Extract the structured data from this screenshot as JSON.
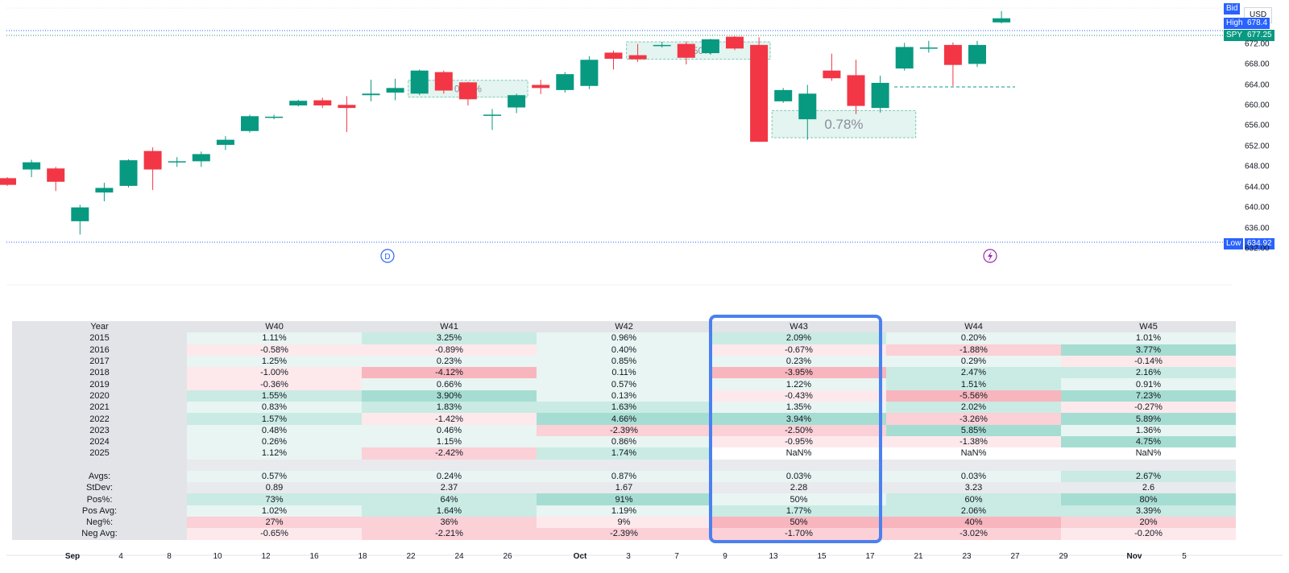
{
  "chart_data": {
    "type": "candlestick",
    "symbol": "SPY",
    "y_ticks": [
      "672.00",
      "668.00",
      "664.00",
      "660.00",
      "656.00",
      "652.00",
      "648.00",
      "644.00",
      "640.00",
      "636.00",
      "632.00"
    ],
    "ylim": [
      630,
      679
    ],
    "x_labels": [
      {
        "t": "Sep",
        "bold": true
      },
      {
        "t": "4"
      },
      {
        "t": "8"
      },
      {
        "t": "10"
      },
      {
        "t": "12"
      },
      {
        "t": "16"
      },
      {
        "t": "18"
      },
      {
        "t": "22"
      },
      {
        "t": "24"
      },
      {
        "t": "26"
      },
      {
        "t": "Oct",
        "bold": true
      },
      {
        "t": "3"
      },
      {
        "t": "7"
      },
      {
        "t": "9"
      },
      {
        "t": "13"
      },
      {
        "t": "15"
      },
      {
        "t": "17"
      },
      {
        "t": "21"
      },
      {
        "t": "23"
      },
      {
        "t": "27"
      },
      {
        "t": "29"
      },
      {
        "t": "Nov",
        "bold": true
      },
      {
        "t": "5"
      }
    ],
    "candles": [
      {
        "o": 645.8,
        "c": 644.5,
        "h": 646.0,
        "l": 644.3
      },
      {
        "o": 647.5,
        "c": 648.9,
        "h": 649.4,
        "l": 646.0
      },
      {
        "o": 647.7,
        "c": 645.1,
        "h": 648.0,
        "l": 643.3
      },
      {
        "o": 637.4,
        "c": 640.1,
        "h": 640.6,
        "l": 634.8
      },
      {
        "o": 643.0,
        "c": 643.9,
        "h": 644.9,
        "l": 641.3
      },
      {
        "o": 644.3,
        "c": 649.3,
        "h": 649.5,
        "l": 644.0
      },
      {
        "o": 651.1,
        "c": 647.5,
        "h": 651.8,
        "l": 643.5
      },
      {
        "o": 648.9,
        "c": 649.1,
        "h": 649.9,
        "l": 648.0
      },
      {
        "o": 649.1,
        "c": 650.5,
        "h": 651.0,
        "l": 648.0
      },
      {
        "o": 652.3,
        "c": 653.3,
        "h": 654.0,
        "l": 651.3
      },
      {
        "o": 655.0,
        "c": 657.9,
        "h": 658.2,
        "l": 654.7
      },
      {
        "o": 657.6,
        "c": 657.8,
        "h": 658.2,
        "l": 657.3
      },
      {
        "o": 660.0,
        "c": 660.9,
        "h": 661.1,
        "l": 659.8
      },
      {
        "o": 661.0,
        "c": 660.0,
        "h": 661.5,
        "l": 659.5
      },
      {
        "o": 660.1,
        "c": 659.5,
        "h": 661.8,
        "l": 654.8
      },
      {
        "o": 662.0,
        "c": 662.3,
        "h": 665.0,
        "l": 660.8
      },
      {
        "o": 662.5,
        "c": 663.4,
        "h": 665.2,
        "l": 661.0
      },
      {
        "o": 662.3,
        "c": 666.8,
        "h": 667.0,
        "l": 662.0
      },
      {
        "o": 666.5,
        "c": 662.9,
        "h": 666.8,
        "l": 662.3
      },
      {
        "o": 664.5,
        "c": 661.2,
        "h": 664.6,
        "l": 660.0
      },
      {
        "o": 658.1,
        "c": 658.2,
        "h": 659.3,
        "l": 655.2
      },
      {
        "o": 659.6,
        "c": 662.0,
        "h": 662.3,
        "l": 658.5
      },
      {
        "o": 664.0,
        "c": 663.4,
        "h": 665.0,
        "l": 662.2
      },
      {
        "o": 663.0,
        "c": 666.1,
        "h": 666.5,
        "l": 662.5
      },
      {
        "o": 663.8,
        "c": 668.9,
        "h": 669.6,
        "l": 663.2
      },
      {
        "o": 670.3,
        "c": 669.1,
        "h": 670.7,
        "l": 667.0
      },
      {
        "o": 669.8,
        "c": 669.0,
        "h": 672.0,
        "l": 668.5
      },
      {
        "o": 671.7,
        "c": 671.8,
        "h": 672.4,
        "l": 671.3
      },
      {
        "o": 672.0,
        "c": 669.3,
        "h": 672.5,
        "l": 668.0
      },
      {
        "o": 670.2,
        "c": 672.9,
        "h": 673.0,
        "l": 669.9
      },
      {
        "o": 673.4,
        "c": 671.1,
        "h": 673.5,
        "l": 670.8
      },
      {
        "o": 671.8,
        "c": 652.9,
        "h": 673.3,
        "l": 652.9
      },
      {
        "o": 660.8,
        "c": 663.0,
        "h": 663.4,
        "l": 660.5
      },
      {
        "o": 657.3,
        "c": 662.3,
        "h": 664.0,
        "l": 653.3
      },
      {
        "o": 666.8,
        "c": 665.3,
        "h": 670.1,
        "l": 664.8
      },
      {
        "o": 665.9,
        "c": 659.9,
        "h": 668.9,
        "l": 658.3
      },
      {
        "o": 659.5,
        "c": 664.4,
        "h": 665.8,
        "l": 658.6
      },
      {
        "o": 667.2,
        "c": 671.4,
        "h": 672.2,
        "l": 666.8
      },
      {
        "o": 671.2,
        "c": 671.3,
        "h": 672.6,
        "l": 670.3
      },
      {
        "o": 671.8,
        "c": 667.9,
        "h": 672.3,
        "l": 663.8
      },
      {
        "o": 668.1,
        "c": 671.8,
        "h": 672.6,
        "l": 667.5
      },
      {
        "o": 676.2,
        "c": 677.0,
        "h": 678.4,
        "l": 676.0
      }
    ],
    "projection_boxes": [
      {
        "label": "0.61%",
        "from_candle": 17,
        "to_candle": 21
      },
      {
        "label": "0.50%",
        "from_candle": 26,
        "to_candle": 31
      },
      {
        "label": "0.78%",
        "from_candle": 32,
        "to_candle": 37
      }
    ],
    "markers": [
      "D",
      "lightning"
    ]
  },
  "price_badges": {
    "bid_label": "Bid",
    "currency": "USD",
    "high_label": "High",
    "high_value": "678.4",
    "symbol": "SPY",
    "last_value": "677.25",
    "low_label": "Low",
    "low_value": "634.92"
  },
  "seasonality": {
    "headers": [
      "Year",
      "W40",
      "W41",
      "W42",
      "W43",
      "W44",
      "W45"
    ],
    "years": [
      {
        "label": "2015",
        "v": [
          "1.11%",
          "3.25%",
          "0.96%",
          "2.09%",
          "0.20%",
          "1.01%"
        ]
      },
      {
        "label": "2016",
        "v": [
          "-0.58%",
          "-0.89%",
          "0.40%",
          "-0.67%",
          "-1.88%",
          "3.77%"
        ]
      },
      {
        "label": "2017",
        "v": [
          "1.25%",
          "0.23%",
          "0.85%",
          "0.23%",
          "0.29%",
          "-0.14%"
        ]
      },
      {
        "label": "2018",
        "v": [
          "-1.00%",
          "-4.12%",
          "0.11%",
          "-3.95%",
          "2.47%",
          "2.16%"
        ]
      },
      {
        "label": "2019",
        "v": [
          "-0.36%",
          "0.66%",
          "0.57%",
          "1.22%",
          "1.51%",
          "0.91%"
        ]
      },
      {
        "label": "2020",
        "v": [
          "1.55%",
          "3.90%",
          "0.13%",
          "-0.43%",
          "-5.56%",
          "7.23%"
        ]
      },
      {
        "label": "2021",
        "v": [
          "0.83%",
          "1.83%",
          "1.63%",
          "1.35%",
          "2.02%",
          "-0.27%"
        ]
      },
      {
        "label": "2022",
        "v": [
          "1.57%",
          "-1.42%",
          "4.66%",
          "3.94%",
          "-3.26%",
          "5.89%"
        ]
      },
      {
        "label": "2023",
        "v": [
          "0.48%",
          "0.46%",
          "-2.39%",
          "-2.50%",
          "5.85%",
          "1.36%"
        ]
      },
      {
        "label": "2024",
        "v": [
          "0.26%",
          "1.15%",
          "0.86%",
          "-0.95%",
          "-1.38%",
          "4.75%"
        ]
      },
      {
        "label": "2025",
        "v": [
          "1.12%",
          "-2.42%",
          "1.74%",
          "NaN%",
          "NaN%",
          "NaN%"
        ]
      }
    ],
    "stats": [
      {
        "label": "Avgs:",
        "v": [
          "0.57%",
          "0.24%",
          "0.87%",
          "0.03%",
          "0.03%",
          "2.67%"
        ]
      },
      {
        "label": "StDev:",
        "v": [
          "0.89",
          "2.37",
          "1.67",
          "2.28",
          "3.23",
          "2.6"
        ]
      },
      {
        "label": "Pos%:",
        "v": [
          "73%",
          "64%",
          "91%",
          "50%",
          "60%",
          "80%"
        ]
      },
      {
        "label": "Pos Avg:",
        "v": [
          "1.02%",
          "1.64%",
          "1.19%",
          "1.77%",
          "2.06%",
          "3.39%"
        ]
      },
      {
        "label": "Neg%:",
        "v": [
          "27%",
          "36%",
          "9%",
          "50%",
          "40%",
          "20%"
        ]
      },
      {
        "label": "Neg Avg:",
        "v": [
          "-0.65%",
          "-2.21%",
          "-2.39%",
          "-1.70%",
          "-3.02%",
          "-0.20%"
        ]
      }
    ],
    "highlighted_column": "W43"
  },
  "colors": {
    "up": "#089981",
    "down": "#f23645",
    "highlight": "#4a80f0",
    "pos_light": "#e8f5f2",
    "pos_mid": "#c9ebe4",
    "pos_strong": "#a6ddd2",
    "neg_light": "#fde9ec",
    "neg_mid": "#fbd0d6",
    "neg_strong": "#f8b5bd"
  }
}
